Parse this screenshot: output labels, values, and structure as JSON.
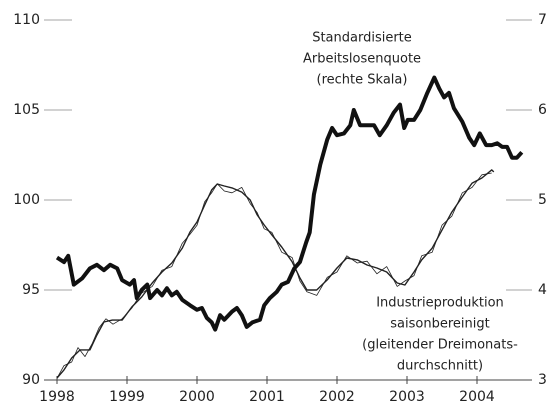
{
  "chart_data": {
    "type": "line",
    "annotations": [
      {
        "lines": [
          "Standardisierte",
          "Arbeitslosenquote",
          "(rechte Skala)"
        ]
      },
      {
        "lines": [
          "Industrieproduktion",
          "saisonbereinigt",
          "(gleitender Dreimonats-",
          "durchschnitt)"
        ]
      }
    ],
    "xlim": [
      1998,
      2004.8
    ],
    "xticks": [
      1998,
      1999,
      2000,
      2001,
      2002,
      2003,
      2004
    ],
    "ylim": [
      90,
      110
    ],
    "yticks": [
      90,
      95,
      100,
      105,
      110
    ],
    "y2lim": [
      3,
      7
    ],
    "y2ticks": [
      3,
      4,
      5,
      6,
      7
    ],
    "series": [
      {
        "color": "#222222",
        "width": 0.8,
        "x": [
          1998.0,
          1998.1,
          1998.21,
          1998.3,
          1998.4,
          1998.5,
          1998.6,
          1998.7,
          1998.8,
          1998.93,
          1999.07,
          1999.2,
          1999.36,
          1999.5,
          1999.64,
          1999.79,
          1999.9,
          2000.0,
          2000.11,
          2000.21,
          2000.29,
          2000.39,
          2000.5,
          2000.64,
          2000.76,
          2000.86,
          2000.96,
          2001.07,
          2001.21,
          2001.36,
          2001.47,
          2001.57,
          2001.71,
          2001.86,
          2002.0,
          2002.14,
          2002.29,
          2002.43,
          2002.57,
          2002.71,
          2002.86,
          2002.97,
          2003.1,
          2003.21,
          2003.36,
          2003.5,
          2003.64,
          2003.79,
          2003.93,
          2004.07,
          2004.21
        ],
        "values": [
          90.1,
          90.8,
          91.0,
          91.8,
          91.3,
          92.0,
          92.9,
          93.4,
          93.1,
          93.4,
          94.0,
          94.8,
          95.2,
          96.1,
          96.3,
          97.6,
          98.1,
          98.6,
          99.9,
          100.4,
          100.9,
          100.5,
          100.4,
          100.7,
          99.8,
          99.3,
          98.4,
          98.2,
          97.1,
          96.8,
          95.5,
          94.9,
          94.7,
          95.7,
          96.0,
          96.9,
          96.5,
          96.6,
          95.9,
          96.3,
          95.2,
          95.5,
          95.8,
          96.9,
          97.1,
          98.6,
          99.1,
          100.4,
          100.7,
          101.4,
          101.5
        ]
      },
      {
        "color": "#222222",
        "width": 1.4,
        "x": [
          1998.0,
          1998.1,
          1998.21,
          1998.33,
          1998.47,
          1998.57,
          1998.67,
          1998.79,
          1998.93,
          1999.07,
          1999.21,
          1999.36,
          1999.5,
          1999.64,
          1999.79,
          1999.9,
          2000.0,
          2000.11,
          2000.21,
          2000.29,
          2000.39,
          2000.5,
          2000.64,
          2000.76,
          2000.86,
          2000.96,
          2001.07,
          2001.21,
          2001.36,
          2001.47,
          2001.57,
          2001.71,
          2001.86,
          2002.0,
          2002.14,
          2002.29,
          2002.43,
          2002.57,
          2002.71,
          2002.86,
          2002.97,
          2003.1,
          2003.21,
          2003.36,
          2003.5,
          2003.64,
          2003.79,
          2003.93,
          2004.07,
          2004.21,
          2004.24
        ],
        "values": [
          90.11,
          90.56,
          91.22,
          91.67,
          91.67,
          92.5,
          93.22,
          93.33,
          93.33,
          94.06,
          94.61,
          95.39,
          96.0,
          96.5,
          97.33,
          98.22,
          98.78,
          99.72,
          100.56,
          100.89,
          100.78,
          100.67,
          100.44,
          100.0,
          99.17,
          98.61,
          98.06,
          97.39,
          96.56,
          95.67,
          95.0,
          95.0,
          95.56,
          96.22,
          96.78,
          96.67,
          96.39,
          96.22,
          96.0,
          95.39,
          95.28,
          96.0,
          96.67,
          97.33,
          98.33,
          99.33,
          100.17,
          100.94,
          101.22,
          101.67,
          101.56
        ]
      },
      {
        "color": "#111111",
        "width": 4,
        "axis": "y2",
        "x": [
          1998.0,
          1998.1,
          1998.16,
          1998.24,
          1998.36,
          1998.47,
          1998.57,
          1998.67,
          1998.76,
          1998.86,
          1998.93,
          1999.04,
          1999.1,
          1999.14,
          1999.21,
          1999.29,
          1999.33,
          1999.43,
          1999.5,
          1999.57,
          1999.64,
          1999.71,
          1999.79,
          1999.9,
          2000.0,
          2000.07,
          2000.14,
          2000.21,
          2000.26,
          2000.33,
          2000.39,
          2000.5,
          2000.57,
          2000.64,
          2000.71,
          2000.79,
          2000.9,
          2000.96,
          2001.04,
          2001.14,
          2001.21,
          2001.3,
          2001.39,
          2001.47,
          2001.56,
          2001.61,
          2001.67,
          2001.76,
          2001.86,
          2001.93,
          2002.0,
          2002.1,
          2002.19,
          2002.24,
          2002.33,
          2002.43,
          2002.53,
          2002.61,
          2002.71,
          2002.81,
          2002.9,
          2002.96,
          2003.01,
          2003.1,
          2003.19,
          2003.29,
          2003.39,
          2003.46,
          2003.53,
          2003.6,
          2003.67,
          2003.79,
          2003.89,
          2003.96,
          2004.04,
          2004.13,
          2004.21,
          2004.29,
          2004.36,
          2004.43,
          2004.5,
          2004.57,
          2004.64
        ],
        "values": [
          4.36,
          4.31,
          4.38,
          4.06,
          4.13,
          4.24,
          4.28,
          4.22,
          4.28,
          4.24,
          4.11,
          4.06,
          4.11,
          3.91,
          4.0,
          4.06,
          3.91,
          4.0,
          3.94,
          4.02,
          3.94,
          3.98,
          3.89,
          3.83,
          3.78,
          3.8,
          3.69,
          3.64,
          3.56,
          3.72,
          3.67,
          3.76,
          3.8,
          3.72,
          3.59,
          3.64,
          3.67,
          3.83,
          3.91,
          3.98,
          4.06,
          4.09,
          4.24,
          4.31,
          4.53,
          4.64,
          5.06,
          5.39,
          5.67,
          5.8,
          5.72,
          5.74,
          5.83,
          6.0,
          5.83,
          5.83,
          5.83,
          5.72,
          5.83,
          5.97,
          6.06,
          5.8,
          5.89,
          5.89,
          6.0,
          6.19,
          6.36,
          6.24,
          6.14,
          6.19,
          6.02,
          5.87,
          5.69,
          5.61,
          5.74,
          5.61,
          5.61,
          5.63,
          5.59,
          5.59,
          5.47,
          5.47,
          5.53
        ]
      }
    ]
  }
}
